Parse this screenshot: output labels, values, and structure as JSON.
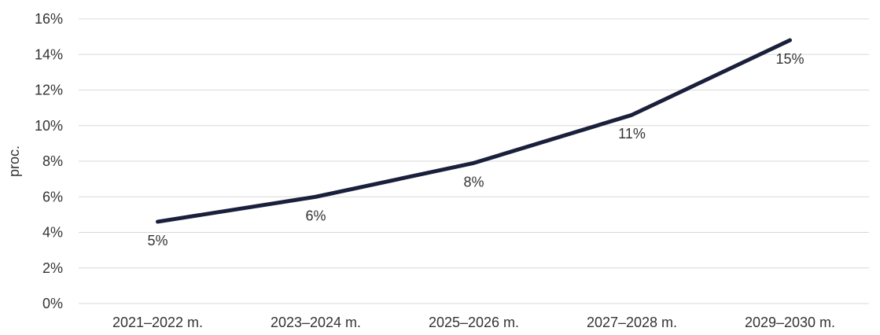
{
  "chart_data": {
    "type": "line",
    "title": "",
    "xlabel": "",
    "ylabel": "proc.",
    "categories": [
      "2021–2022 m.",
      "2023–2024 m.",
      "2025–2026 m.",
      "2027–2028 m.",
      "2029–2030 m."
    ],
    "series": [
      {
        "values": [
          4.6,
          6.0,
          7.9,
          10.6,
          14.8
        ],
        "data_labels": [
          "5%",
          "6%",
          "8%",
          "11%",
          "15%"
        ]
      }
    ],
    "ylim": [
      0,
      16
    ],
    "yticks": [
      0,
      2,
      4,
      6,
      8,
      10,
      12,
      14,
      16
    ],
    "ytick_labels": [
      "0%",
      "2%",
      "4%",
      "6%",
      "8%",
      "10%",
      "12%",
      "14%",
      "16%"
    ],
    "grid": true,
    "legend": "none",
    "colors": {
      "line": "#1a1f3c",
      "grid": "#d9d9d9",
      "text": "#333333"
    }
  }
}
